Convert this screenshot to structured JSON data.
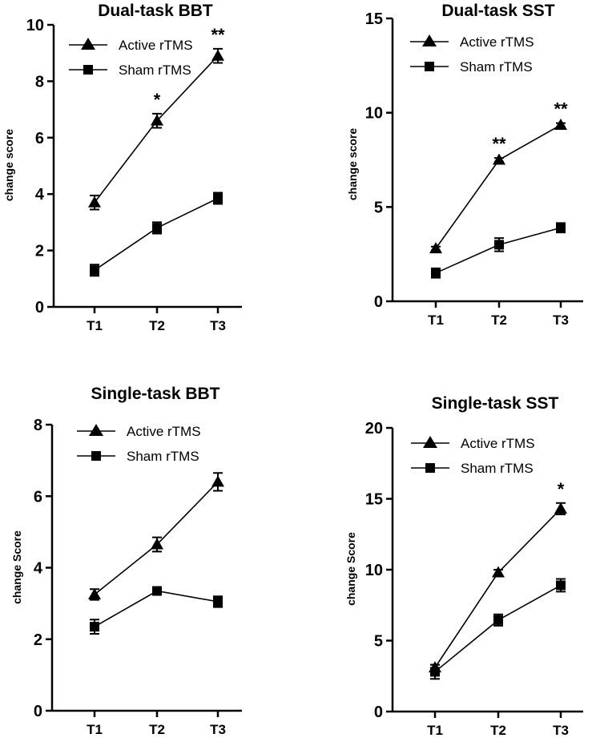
{
  "chart_data": [
    {
      "type": "line",
      "title": "Dual-task BBT",
      "xlabel": "",
      "ylabel": "change score",
      "categories": [
        "T1",
        "T2",
        "T3"
      ],
      "ylim": [
        0,
        10
      ],
      "yticks": [
        0,
        2,
        4,
        6,
        8,
        10
      ],
      "legend": "top-left",
      "series": [
        {
          "name": "Active rTMS",
          "marker": "triangle",
          "values": [
            3.7,
            6.6,
            8.9
          ],
          "errors": [
            0.25,
            0.25,
            0.25
          ]
        },
        {
          "name": "Sham rTMS",
          "marker": "square",
          "values": [
            1.3,
            2.8,
            3.85
          ],
          "errors": [
            0.2,
            0.2,
            0.2
          ]
        }
      ],
      "annotations": [
        "",
        "*",
        "**"
      ]
    },
    {
      "type": "line",
      "title": "Dual-task SST",
      "xlabel": "",
      "ylabel": "change score",
      "categories": [
        "T1",
        "T2",
        "T3"
      ],
      "ylim": [
        0,
        15
      ],
      "yticks": [
        0,
        5,
        10,
        15
      ],
      "legend": "top-left",
      "series": [
        {
          "name": "Active rTMS",
          "marker": "triangle",
          "values": [
            2.8,
            7.5,
            9.35
          ],
          "errors": [
            0.1,
            0.1,
            0.1
          ]
        },
        {
          "name": "Sham rTMS",
          "marker": "square",
          "values": [
            1.5,
            3.0,
            3.9
          ],
          "errors": [
            0.25,
            0.35,
            0.25
          ]
        }
      ],
      "annotations": [
        "",
        "**",
        "**"
      ]
    },
    {
      "type": "line",
      "title": "Single-task BBT",
      "xlabel": "",
      "ylabel": "change Score",
      "categories": [
        "T1",
        "T2",
        "T3"
      ],
      "ylim": [
        0,
        8
      ],
      "yticks": [
        0,
        2,
        4,
        6,
        8
      ],
      "legend": "top-left",
      "series": [
        {
          "name": "Active rTMS",
          "marker": "triangle",
          "values": [
            3.25,
            4.65,
            6.4
          ],
          "errors": [
            0.15,
            0.2,
            0.25
          ]
        },
        {
          "name": "Sham rTMS",
          "marker": "square",
          "values": [
            2.35,
            3.35,
            3.05
          ],
          "errors": [
            0.2,
            0.1,
            0.15
          ]
        }
      ],
      "annotations": [
        "",
        "",
        ""
      ]
    },
    {
      "type": "line",
      "title": "Single-task SST",
      "xlabel": "",
      "ylabel": "change Score",
      "categories": [
        "T1",
        "T2",
        "T3"
      ],
      "ylim": [
        0,
        20
      ],
      "yticks": [
        0,
        5,
        10,
        15,
        20
      ],
      "legend": "top-left",
      "series": [
        {
          "name": "Active rTMS",
          "marker": "triangle",
          "values": [
            3.1,
            9.8,
            14.3
          ],
          "errors": [
            0.2,
            0.2,
            0.4
          ]
        },
        {
          "name": "Sham rTMS",
          "marker": "square",
          "values": [
            2.8,
            6.45,
            8.9
          ],
          "errors": [
            0.5,
            0.4,
            0.45
          ]
        }
      ],
      "annotations": [
        "",
        "",
        "*"
      ]
    }
  ]
}
